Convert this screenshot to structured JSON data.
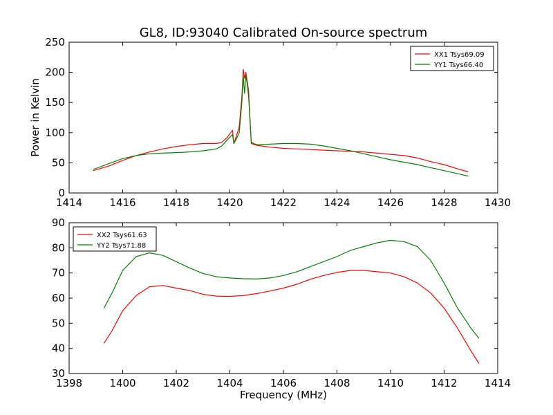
{
  "title": "GL8, ID:93040 Calibrated On-source spectrum",
  "colors": {
    "red": "#ff0000",
    "green": "#008000"
  },
  "chart_data": [
    {
      "type": "line",
      "xlabel": "",
      "ylabel": "Power in Kelvin",
      "xlim": [
        1414,
        1430
      ],
      "ylim": [
        0,
        250
      ],
      "xticks": [
        1414,
        1416,
        1418,
        1420,
        1422,
        1424,
        1426,
        1428,
        1430
      ],
      "yticks": [
        0,
        50,
        100,
        150,
        200,
        250
      ],
      "legend_position": "top-right",
      "series": [
        {
          "name": "XX1 Tsys69.09",
          "color": "#ff0000",
          "x": [
            1414.9,
            1415.5,
            1416.0,
            1416.5,
            1417.0,
            1417.5,
            1418.0,
            1418.5,
            1419.0,
            1419.5,
            1419.7,
            1419.9,
            1420.1,
            1420.15,
            1420.25,
            1420.35,
            1420.45,
            1420.5,
            1420.55,
            1420.6,
            1420.65,
            1420.7,
            1420.8,
            1421.0,
            1421.5,
            1422.0,
            1422.5,
            1423.0,
            1423.5,
            1424.0,
            1424.5,
            1425.0,
            1425.5,
            1426.0,
            1426.5,
            1427.0,
            1427.5,
            1428.0,
            1428.5,
            1428.9
          ],
          "y": [
            37,
            45,
            54,
            62,
            68,
            73,
            77,
            80,
            82,
            82,
            84,
            92,
            104,
            82,
            95,
            110,
            160,
            205,
            190,
            200,
            185,
            170,
            82,
            79,
            76,
            74,
            73,
            72,
            71,
            70,
            69,
            68,
            66,
            64,
            62,
            58,
            52,
            47,
            40,
            35
          ]
        },
        {
          "name": "YY1 Tsys66.40",
          "color": "#008000",
          "x": [
            1414.9,
            1415.5,
            1416.0,
            1416.5,
            1417.0,
            1417.5,
            1418.0,
            1418.5,
            1419.0,
            1419.5,
            1419.7,
            1419.9,
            1420.1,
            1420.15,
            1420.25,
            1420.35,
            1420.45,
            1420.5,
            1420.55,
            1420.6,
            1420.65,
            1420.7,
            1420.8,
            1421.0,
            1421.5,
            1422.0,
            1422.5,
            1423.0,
            1423.5,
            1424.0,
            1424.5,
            1425.0,
            1425.5,
            1426.0,
            1426.5,
            1427.0,
            1427.5,
            1428.0,
            1428.5,
            1428.9
          ],
          "y": [
            39,
            49,
            57,
            62,
            65,
            66,
            67,
            68,
            70,
            73,
            78,
            88,
            97,
            82,
            90,
            100,
            150,
            195,
            165,
            195,
            180,
            160,
            84,
            80,
            81,
            82,
            82,
            81,
            78,
            74,
            70,
            65,
            60,
            55,
            51,
            47,
            42,
            37,
            32,
            28
          ]
        }
      ]
    },
    {
      "type": "line",
      "xlabel": "Frequency (MHz)",
      "ylabel": "",
      "xlim": [
        1398,
        1414
      ],
      "ylim": [
        30,
        90
      ],
      "xticks": [
        1398,
        1400,
        1402,
        1404,
        1406,
        1408,
        1410,
        1412,
        1414
      ],
      "yticks": [
        30,
        40,
        50,
        60,
        70,
        80,
        90
      ],
      "legend_position": "top-left",
      "series": [
        {
          "name": "XX2 Tsys61.63",
          "color": "#ff0000",
          "x": [
            1399.3,
            1399.6,
            1400.0,
            1400.5,
            1401.0,
            1401.5,
            1402.0,
            1402.5,
            1403.0,
            1403.5,
            1404.0,
            1404.5,
            1405.0,
            1405.5,
            1406.0,
            1406.5,
            1407.0,
            1407.5,
            1408.0,
            1408.5,
            1409.0,
            1409.5,
            1410.0,
            1410.5,
            1411.0,
            1411.5,
            1412.0,
            1412.5,
            1413.0,
            1413.3
          ],
          "y": [
            42,
            47,
            55,
            61,
            64.5,
            65,
            64,
            63,
            61.5,
            60.8,
            60.7,
            61,
            61.8,
            62.8,
            64,
            65.5,
            67.5,
            69,
            70.2,
            71,
            71,
            70.5,
            70,
            68.5,
            66,
            62,
            56,
            48,
            39,
            34
          ]
        },
        {
          "name": "YY2 Tsys71.88",
          "color": "#008000",
          "x": [
            1399.3,
            1399.6,
            1400.0,
            1400.5,
            1401.0,
            1401.5,
            1402.0,
            1402.5,
            1403.0,
            1403.5,
            1404.0,
            1404.5,
            1405.0,
            1405.5,
            1406.0,
            1406.5,
            1407.0,
            1407.5,
            1408.0,
            1408.5,
            1409.0,
            1409.5,
            1410.0,
            1410.5,
            1411.0,
            1411.5,
            1412.0,
            1412.5,
            1413.0,
            1413.3
          ],
          "y": [
            56,
            62,
            71,
            76.5,
            78,
            77,
            74.5,
            72,
            69.8,
            68.5,
            68,
            67.7,
            67.6,
            68,
            69,
            70.5,
            72.5,
            74.5,
            76.5,
            79,
            80.5,
            82,
            83,
            82.5,
            80.5,
            75,
            66,
            56,
            48,
            44
          ]
        }
      ]
    }
  ]
}
